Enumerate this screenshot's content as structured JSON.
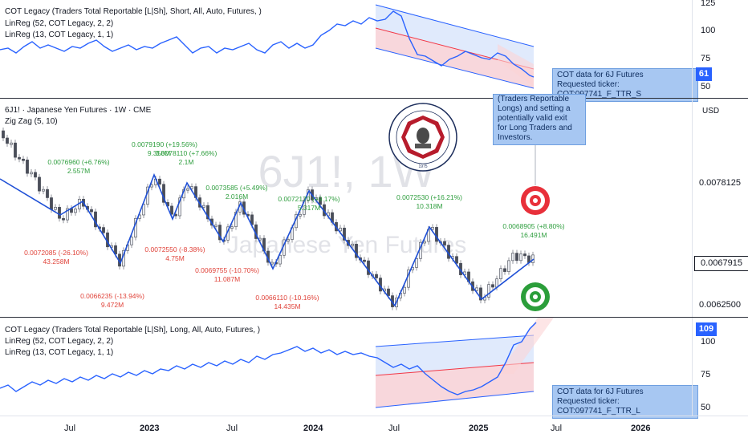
{
  "symbol_title": "6J1! · Japanese Yen Futures · 1W · CME",
  "watermark": {
    "symbol": "6J1!, 1W",
    "name": "Japanese Yen Futures"
  },
  "top_pane": {
    "indicators": [
      "COT Legacy (Traders Total Reportable [L|Sh], Short, All, Auto, Futures, )",
      "LinReg (52, COT Legacy, 2, 2)",
      "LinReg (13, COT Legacy, 1, 1)"
    ],
    "scale": [
      "125",
      "100",
      "75",
      "50"
    ],
    "current_value": "61",
    "tooltip": [
      "COT data for 6J Futures",
      "Requested ticker: COT:097741_F_TTR_S"
    ]
  },
  "main_pane": {
    "indicators": [
      "Zig Zag (5, 10)"
    ],
    "currency": "USD",
    "scale": [
      "0.0078125",
      "0.0062500"
    ],
    "current_price": "0.0067915",
    "note": [
      "(Traders Reportable",
      "Longs) and setting a",
      "potentially valid exit",
      "for Long Traders and",
      "Investors."
    ],
    "pivots": [
      {
        "price": "0.0076960 (+6.76%)",
        "vol": "2.557M",
        "color": "green"
      },
      {
        "price": "0.0079190 (+19.56%)",
        "vol": "9.358M",
        "color": "green"
      },
      {
        "price": "0.0078110 (+7.66%)",
        "vol": "2.1M",
        "color": "green"
      },
      {
        "price": "0.0073585 (+5.49%)",
        "vol": "2.016M",
        "color": "green"
      },
      {
        "price": "0.0072170 (+9.17%)",
        "vol": "5.317M",
        "color": "green"
      },
      {
        "price": "0.0072530 (+16.21%)",
        "vol": "10.318M",
        "color": "green"
      },
      {
        "price": "0.0068905 (+8.80%)",
        "vol": "16.491M",
        "color": "green"
      },
      {
        "price": "0.0072085 (-26.10%)",
        "vol": "43.258M",
        "color": "red"
      },
      {
        "price": "0.0072550 (-8.38%)",
        "vol": "4.75M",
        "color": "red"
      },
      {
        "price": "0.0069755 (-10.70%)",
        "vol": "11.087M",
        "color": "red"
      },
      {
        "price": "0.0066235 (-13.94%)",
        "vol": "9.472M",
        "color": "red"
      },
      {
        "price": "0.0066110 (-10.16%)",
        "vol": "14.435M",
        "color": "red"
      }
    ]
  },
  "bottom_pane": {
    "indicators": [
      "COT Legacy (Traders Total Reportable [L|Sh], Long, All, Auto, Futures, )",
      "LinReg (52, COT Legacy, 2, 2)",
      "LinReg (13, COT Legacy, 1, 1)"
    ],
    "scale": [
      "100",
      "75",
      "50"
    ],
    "current_value": "109",
    "tooltip": [
      "COT data for 6J Futures",
      "Requested ticker: COT:097741_F_TTR_L"
    ]
  },
  "time_axis": [
    "Jul",
    "2023",
    "Jul",
    "2024",
    "Jul",
    "2025",
    "Jul",
    "2026"
  ],
  "logo_text": [
    "COMMODITY FUTURES TRADING COMMISSION",
    "1975"
  ],
  "colors": {
    "accent": "#2962ff",
    "up": "#4caf50",
    "down": "#f23645",
    "label_green": "#2e9e3e",
    "label_red": "#e0433a",
    "badge": "#2962ff",
    "zigzag": "#1e4fd6"
  }
}
